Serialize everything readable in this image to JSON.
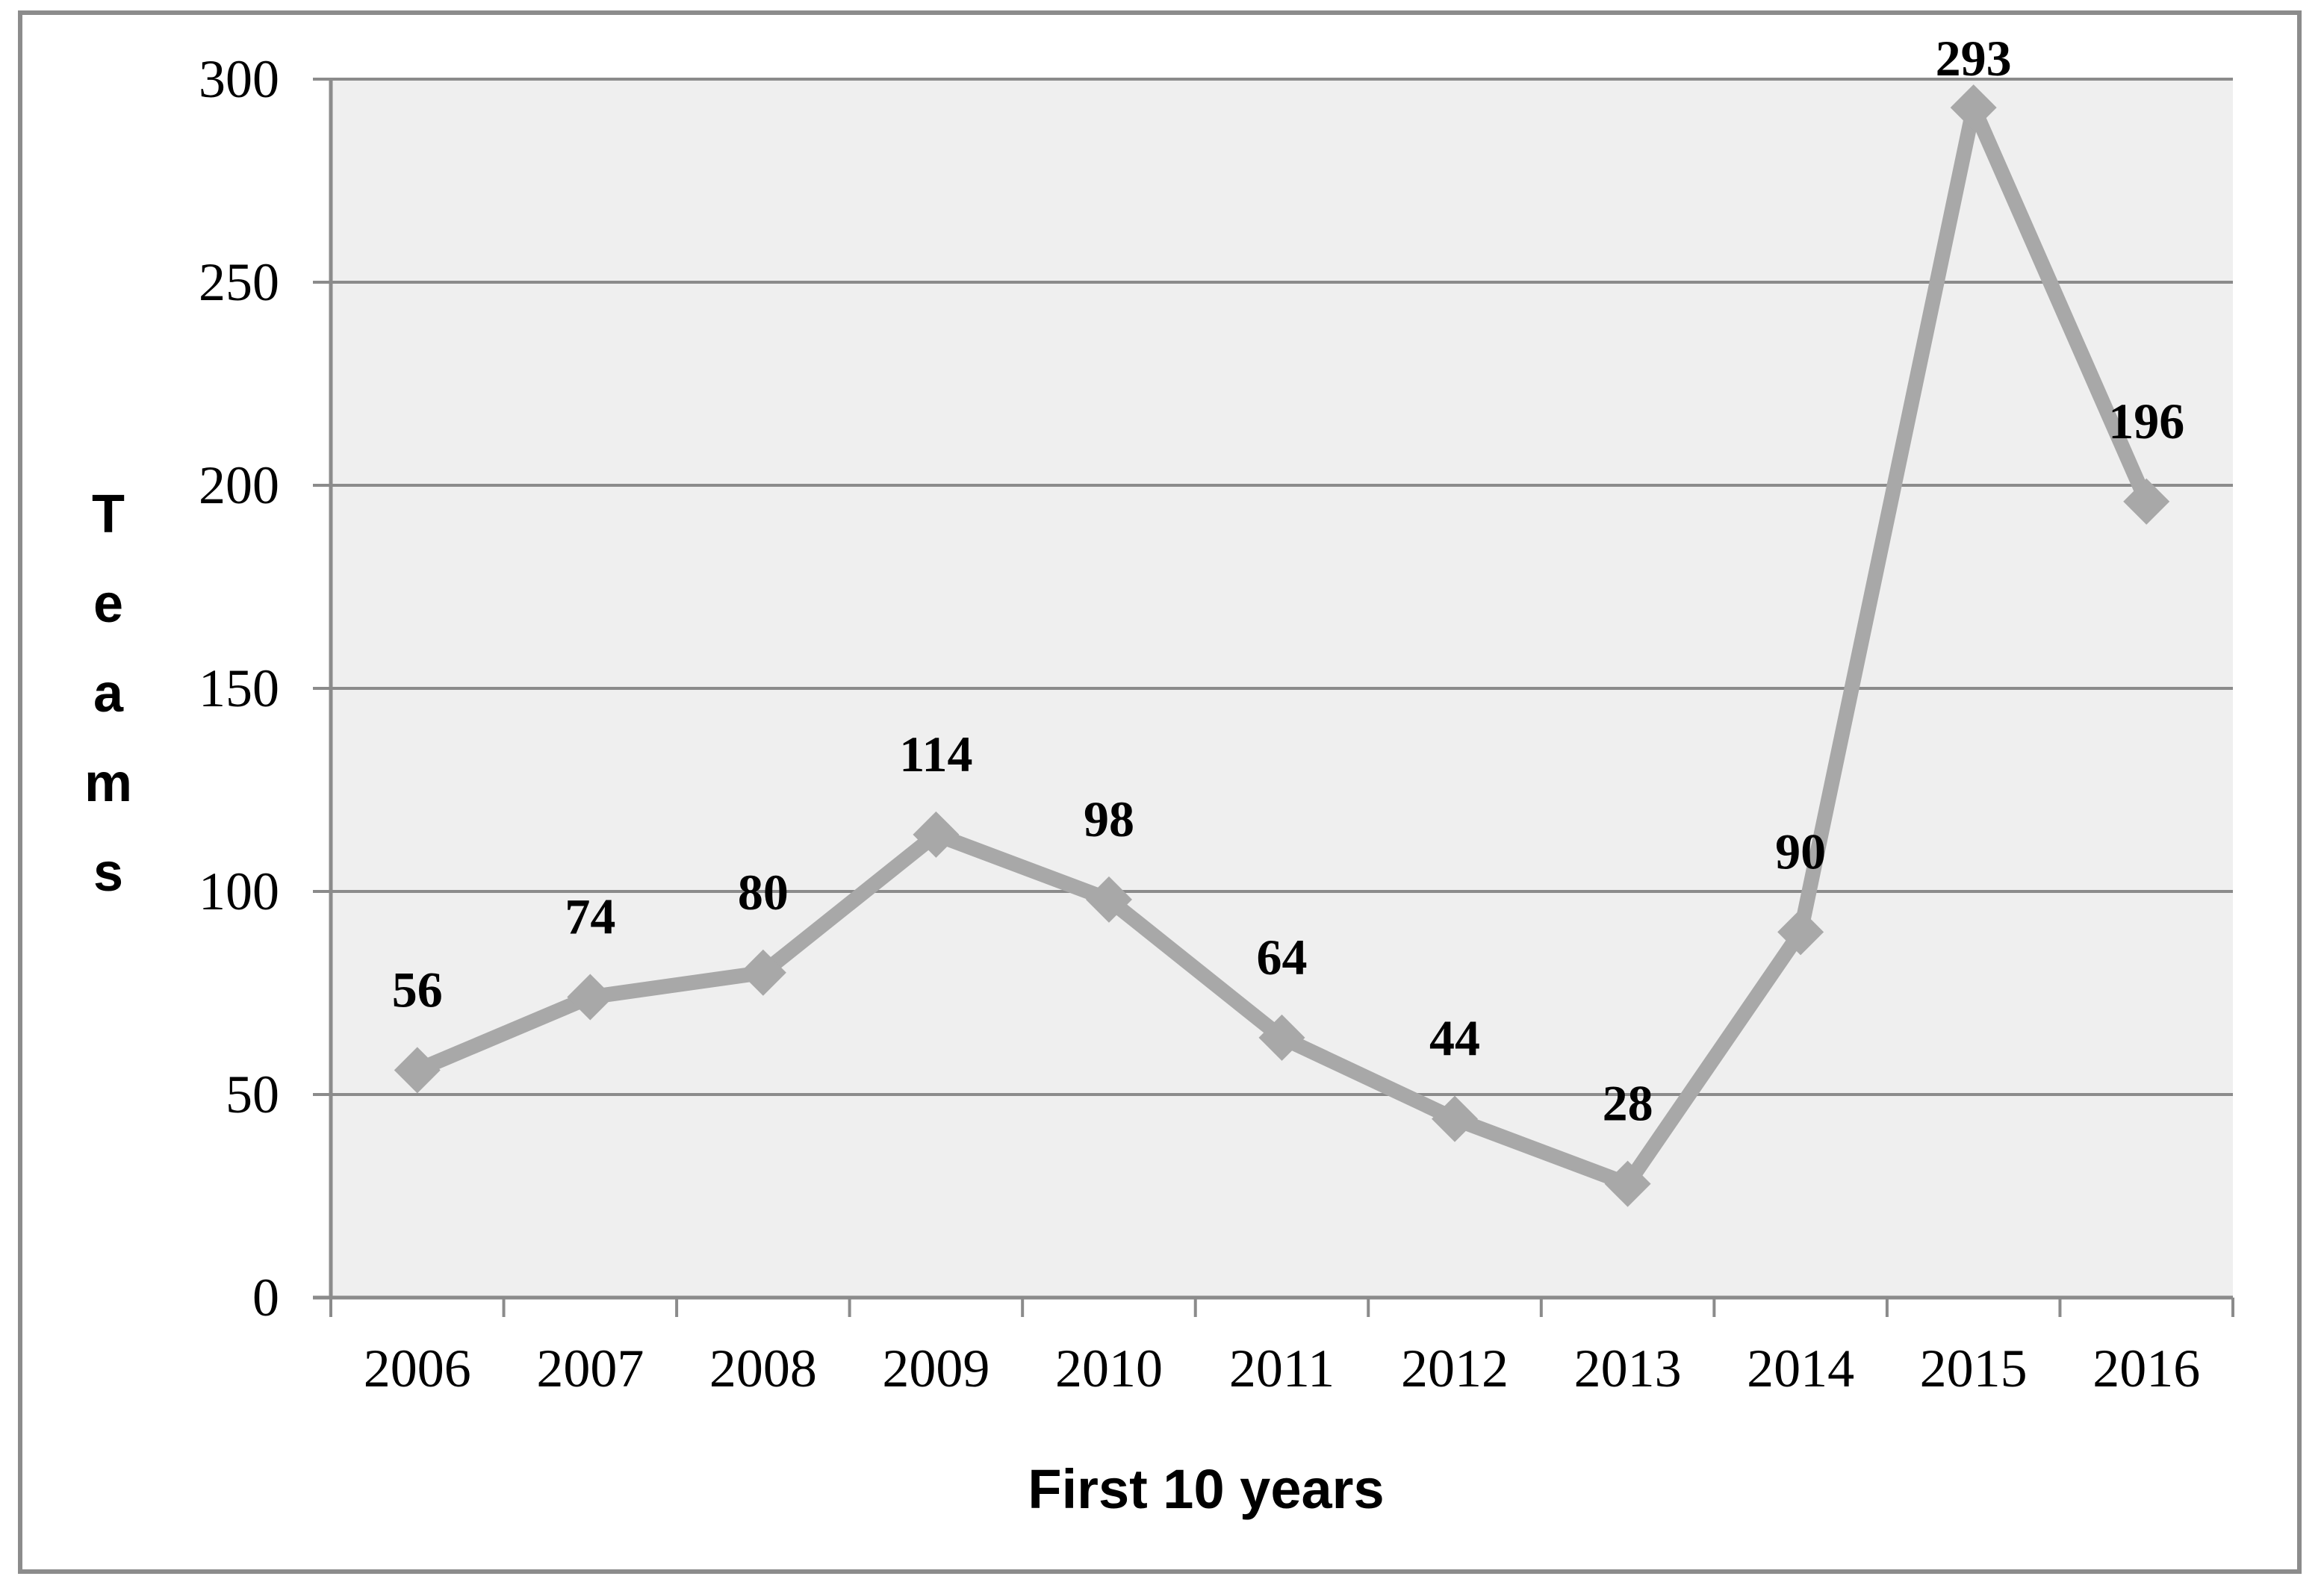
{
  "chart_data": {
    "type": "line",
    "title": "",
    "categories": [
      "2006",
      "2007",
      "2008",
      "2009",
      "2010",
      "2011",
      "2012",
      "2013",
      "2014",
      "2015",
      "2016"
    ],
    "series": [
      {
        "name": "Teams",
        "values": [
          56,
          74,
          80,
          114,
          98,
          64,
          44,
          28,
          90,
          293,
          196
        ]
      }
    ],
    "xlabel": "First 10 years",
    "ylabel": "Teams",
    "ylim": [
      0,
      300
    ],
    "yticks": [
      0,
      50,
      100,
      150,
      200,
      250,
      300
    ],
    "grid": true,
    "legend": "none",
    "marker": "diamond",
    "colors": {
      "series_line": "#a8a8a8",
      "marker": "#a8a8a8",
      "grid": "#8b8b8b",
      "axis": "#8b8b8b",
      "plot_background": "#efefef",
      "page_background": "#ffffff",
      "frame_border": "#8c8c8c",
      "text": "#000000"
    }
  }
}
